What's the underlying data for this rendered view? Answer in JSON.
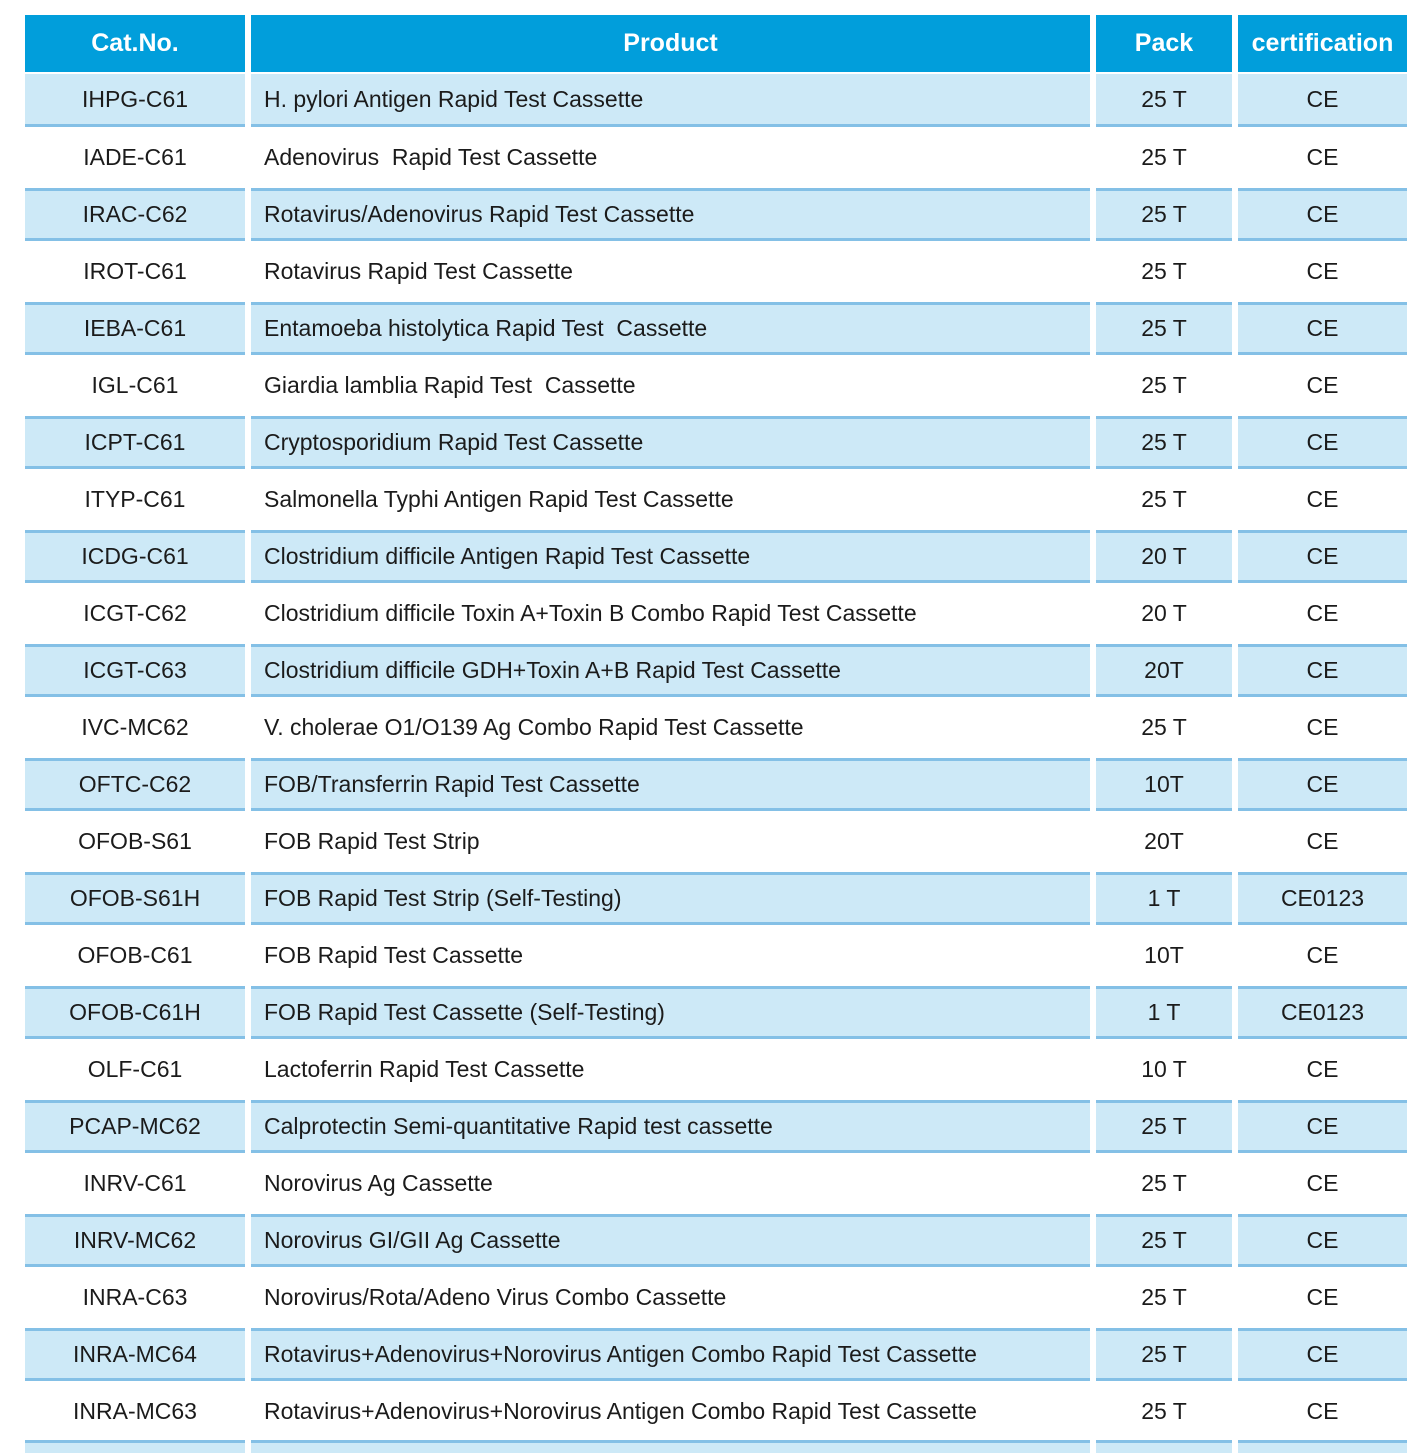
{
  "colors": {
    "header_bg": "#019EDB",
    "header_text": "#FFFFFF",
    "stripe_bg": "#CDE9F7",
    "stripe_border": "#84C0E6",
    "cell_text": "#1B1B1B"
  },
  "table": {
    "headers": {
      "cat_no": "Cat.No.",
      "product": "Product",
      "pack": "Pack",
      "certification": "certification"
    },
    "rows": [
      {
        "cat_no": "IHPG-C61",
        "product": "H. pylori Antigen Rapid Test Cassette",
        "pack": "25 T",
        "certification": "CE"
      },
      {
        "cat_no": "IADE-C61",
        "product": "Adenovirus  Rapid Test Cassette",
        "pack": "25 T",
        "certification": "CE"
      },
      {
        "cat_no": "IRAC-C62",
        "product": "Rotavirus/Adenovirus Rapid Test Cassette",
        "pack": "25 T",
        "certification": "CE"
      },
      {
        "cat_no": "IROT-C61",
        "product": "Rotavirus Rapid Test Cassette",
        "pack": "25 T",
        "certification": "CE"
      },
      {
        "cat_no": "IEBA-C61",
        "product": "Entamoeba histolytica Rapid Test  Cassette",
        "pack": "25 T",
        "certification": "CE"
      },
      {
        "cat_no": "IGL-C61",
        "product": "Giardia lamblia Rapid Test  Cassette",
        "pack": "25 T",
        "certification": "CE"
      },
      {
        "cat_no": "ICPT-C61",
        "product": "Cryptosporidium Rapid Test Cassette",
        "pack": "25 T",
        "certification": "CE"
      },
      {
        "cat_no": "ITYP-C61",
        "product": "Salmonella Typhi Antigen Rapid Test Cassette",
        "pack": "25 T",
        "certification": "CE"
      },
      {
        "cat_no": "ICDG-C61",
        "product": "Clostridium difficile Antigen Rapid Test Cassette",
        "pack": "20 T",
        "certification": "CE"
      },
      {
        "cat_no": "ICGT-C62",
        "product": "Clostridium difficile Toxin A+Toxin B Combo Rapid Test Cassette",
        "pack": "20 T",
        "certification": "CE"
      },
      {
        "cat_no": "ICGT-C63",
        "product": "Clostridium difficile GDH+Toxin A+B Rapid Test Cassette",
        "pack": "20T",
        "certification": "CE"
      },
      {
        "cat_no": "IVC-MC62",
        "product": "V. cholerae O1/O139 Ag Combo Rapid Test Cassette",
        "pack": "25 T",
        "certification": "CE"
      },
      {
        "cat_no": "OFTC-C62",
        "product": "FOB/Transferrin Rapid Test Cassette",
        "pack": "10T",
        "certification": "CE"
      },
      {
        "cat_no": "OFOB-S61",
        "product": "FOB Rapid Test Strip",
        "pack": "20T",
        "certification": "CE"
      },
      {
        "cat_no": "OFOB-S61H",
        "product": "FOB Rapid Test Strip (Self-Testing)",
        "pack": "1 T",
        "certification": "CE0123"
      },
      {
        "cat_no": "OFOB-C61",
        "product": "FOB Rapid Test Cassette",
        "pack": "10T",
        "certification": "CE"
      },
      {
        "cat_no": "OFOB-C61H",
        "product": "FOB Rapid Test Cassette (Self-Testing)",
        "pack": "1 T",
        "certification": "CE0123"
      },
      {
        "cat_no": "OLF-C61",
        "product": "Lactoferrin Rapid Test Cassette",
        "pack": "10 T",
        "certification": "CE"
      },
      {
        "cat_no": "PCAP-MC62",
        "product": "Calprotectin Semi-quantitative Rapid test cassette",
        "pack": "25 T",
        "certification": "CE"
      },
      {
        "cat_no": "INRV-C61",
        "product": "Norovirus Ag Cassette",
        "pack": "25 T",
        "certification": "CE"
      },
      {
        "cat_no": "INRV-MC62",
        "product": "Norovirus GI/GII Ag Cassette",
        "pack": "25 T",
        "certification": "CE"
      },
      {
        "cat_no": "INRA-C63",
        "product": "Norovirus/Rota/Adeno Virus Combo Cassette",
        "pack": "25 T",
        "certification": "CE"
      },
      {
        "cat_no": "INRA-MC64",
        "product": "Rotavirus+Adenovirus+Norovirus Antigen Combo Rapid Test Cassette",
        "pack": "25 T",
        "certification": "CE"
      },
      {
        "cat_no": "INRA-MC63",
        "product": "Rotavirus+Adenovirus+Norovirus Antigen Combo Rapid Test Cassette",
        "pack": "25 T",
        "certification": "CE"
      }
    ]
  }
}
